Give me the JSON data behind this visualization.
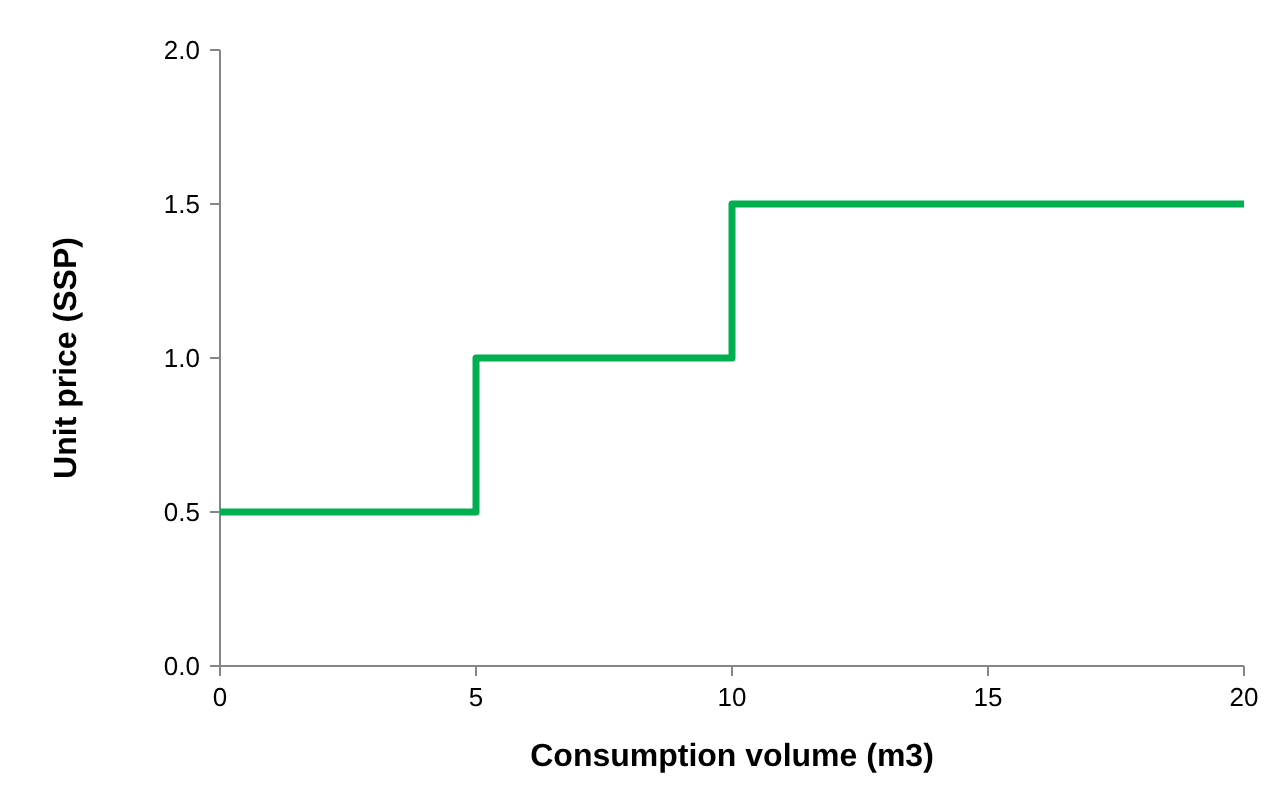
{
  "chart_data": {
    "type": "step",
    "xlabel": "Consumption volume (m3)",
    "ylabel": "Unit price (SSP)",
    "x": [
      0,
      5,
      10,
      20
    ],
    "series": [
      {
        "color": "#00b050",
        "values": [
          0.5,
          1,
          1.5,
          1.5
        ]
      }
    ],
    "xlim": [
      0,
      20
    ],
    "xticks": [
      0,
      5,
      10,
      15,
      20
    ],
    "ylim": [
      0,
      2
    ],
    "yticks": [
      {
        "value": 0,
        "label": "0.0"
      },
      {
        "value": 0.5,
        "label": "0.5"
      },
      {
        "value": 1,
        "label": "1.0"
      },
      {
        "value": 1.5,
        "label": "1.5"
      },
      {
        "value": 2,
        "label": "2.0"
      }
    ]
  }
}
